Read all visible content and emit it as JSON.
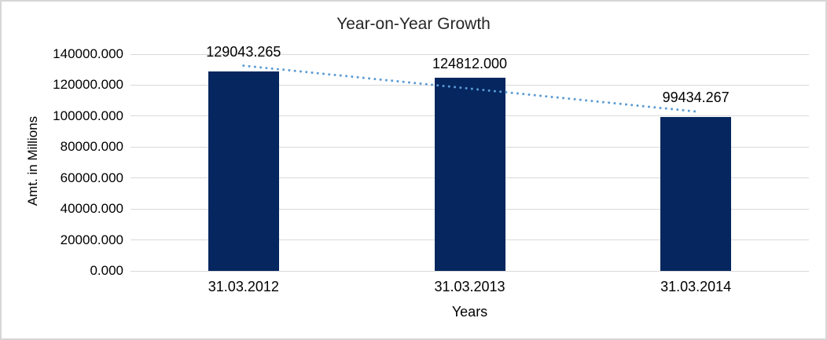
{
  "chart_data": {
    "type": "bar",
    "title": "Year-on-Year Growth",
    "xlabel": "Years",
    "ylabel": "Amt. in Millions",
    "categories": [
      "31.03.2012",
      "31.03.2013",
      "31.03.2014"
    ],
    "values": [
      129043.265,
      124812.0,
      99434.267
    ],
    "data_labels": [
      "129043.265",
      "124812.000",
      "99434.267"
    ],
    "ylim": [
      0,
      140000
    ],
    "ytick_step": 20000,
    "ytick_labels_top_to_bottom": [
      "140000.000",
      "120000.000",
      "100000.000",
      "80000.000",
      "60000.000",
      "40000.000",
      "20000.000",
      "0.000"
    ],
    "grid": true,
    "legend": "none",
    "bar_color": "#05265f",
    "gridline_color": "#d9d9d9",
    "text_color": "#000000",
    "frame_border_color": "#d6d6d6",
    "trendline": {
      "type": "linear",
      "style": "dotted",
      "color": "#5b9bd5"
    }
  }
}
